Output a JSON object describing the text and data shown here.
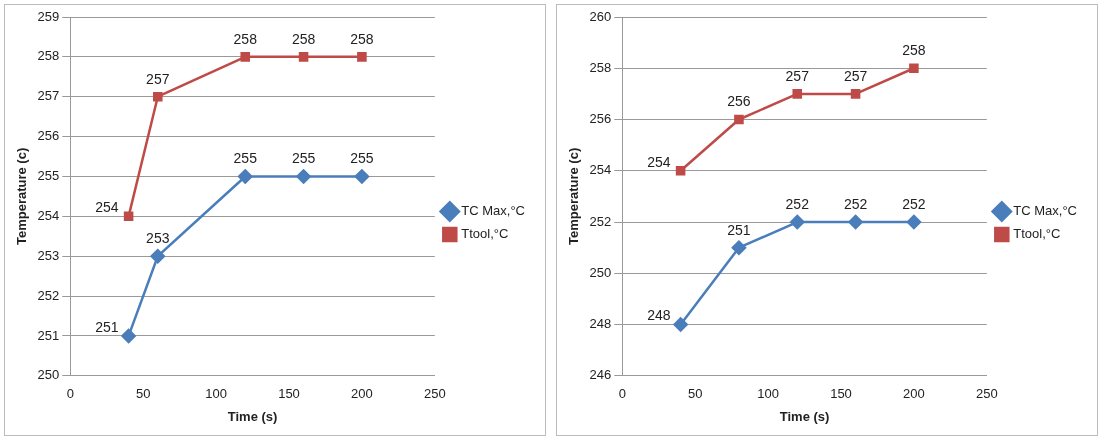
{
  "chart_data": [
    {
      "type": "line",
      "xlabel": "Time (s)",
      "ylabel": "Temperature (c)",
      "xlim": [
        0,
        250
      ],
      "xticks": [
        0,
        50,
        100,
        150,
        200,
        250
      ],
      "ylim": [
        250,
        259
      ],
      "yticks": [
        250,
        251,
        252,
        253,
        254,
        255,
        256,
        257,
        258,
        259
      ],
      "grid": "y",
      "legend": "right",
      "data_labels": true,
      "series": [
        {
          "name": "TC Max,°C",
          "color": "#4a7ebb",
          "marker": "diamond",
          "x": [
            40,
            60,
            120,
            160,
            200
          ],
          "values": [
            251,
            253,
            255,
            255,
            255
          ]
        },
        {
          "name": "Ttool,°C",
          "color": "#be4b48",
          "marker": "square",
          "x": [
            40,
            60,
            120,
            160,
            200
          ],
          "values": [
            254,
            257,
            258,
            258,
            258
          ]
        }
      ]
    },
    {
      "type": "line",
      "xlabel": "Time (s)",
      "ylabel": "Temperature (c)",
      "xlim": [
        0,
        250
      ],
      "xticks": [
        0,
        50,
        100,
        150,
        200,
        250
      ],
      "ylim": [
        246,
        260
      ],
      "yticks": [
        246,
        248,
        250,
        252,
        254,
        256,
        258,
        260
      ],
      "grid": "y",
      "legend": "right",
      "data_labels": true,
      "series": [
        {
          "name": "TC Max,°C",
          "color": "#4a7ebb",
          "marker": "diamond",
          "x": [
            40,
            80,
            120,
            160,
            200
          ],
          "values": [
            248,
            251,
            252,
            252,
            252
          ]
        },
        {
          "name": "Ttool,°C",
          "color": "#be4b48",
          "marker": "square",
          "x": [
            40,
            80,
            120,
            160,
            200
          ],
          "values": [
            254,
            256,
            257,
            257,
            258
          ]
        }
      ]
    }
  ]
}
